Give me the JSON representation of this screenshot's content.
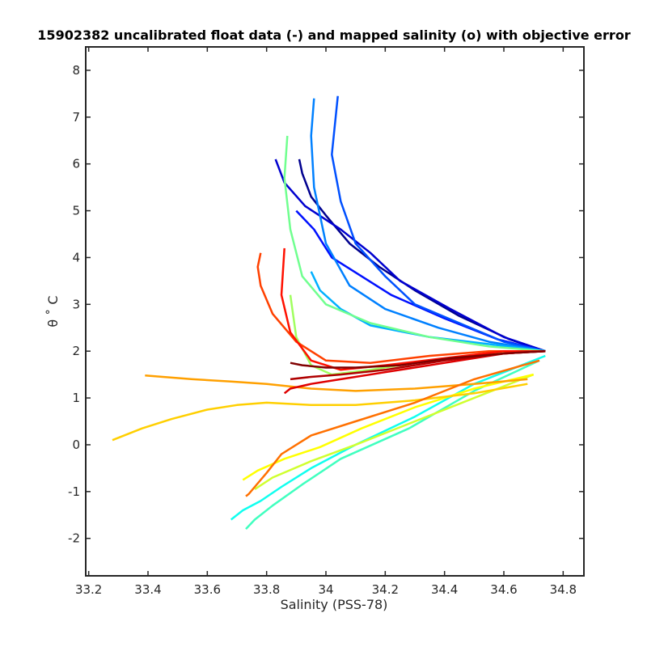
{
  "chart_data": {
    "type": "line",
    "title": "15902382 uncalibrated float data (-) and mapped salinity (o) with objective error",
    "xlabel": "Salinity (PSS-78)",
    "ylabel": "θ ˚ C",
    "xlim": [
      33.19,
      34.87
    ],
    "ylim": [
      -2.8,
      8.5
    ],
    "xticks": [
      "33.2",
      "33.4",
      "33.6",
      "33.8",
      "34",
      "34.2",
      "34.4",
      "34.6",
      "34.8"
    ],
    "yticks": [
      "-2",
      "-1",
      "0",
      "1",
      "2",
      "3",
      "4",
      "5",
      "6",
      "7",
      "8"
    ],
    "grid": false,
    "legend": "none",
    "colormap": "jet (profile number)",
    "series": [
      {
        "color": "#00008f",
        "x": [
          34.74,
          34.62,
          34.45,
          34.3,
          34.18,
          34.08,
          34.0,
          33.95,
          33.92,
          33.91
        ],
        "y": [
          2.0,
          2.25,
          2.75,
          3.3,
          3.8,
          4.3,
          4.9,
          5.3,
          5.8,
          6.1
        ]
      },
      {
        "color": "#0000cf",
        "x": [
          34.74,
          34.6,
          34.42,
          34.25,
          34.15,
          34.05,
          33.93,
          33.86,
          33.83
        ],
        "y": [
          2.0,
          2.3,
          2.9,
          3.5,
          4.1,
          4.6,
          5.1,
          5.6,
          6.1
        ]
      },
      {
        "color": "#0010ff",
        "x": [
          34.74,
          34.58,
          34.4,
          34.22,
          34.12,
          34.02,
          33.96,
          33.9
        ],
        "y": [
          2.0,
          2.25,
          2.7,
          3.2,
          3.6,
          4.0,
          4.6,
          5.0
        ]
      },
      {
        "color": "#0050ff",
        "x": [
          34.74,
          34.6,
          34.45,
          34.3,
          34.2,
          34.1,
          34.05,
          34.02,
          34.04
        ],
        "y": [
          2.0,
          2.2,
          2.6,
          3.0,
          3.6,
          4.3,
          5.2,
          6.2,
          7.45
        ]
      },
      {
        "color": "#0080ff",
        "x": [
          34.74,
          34.55,
          34.38,
          34.2,
          34.08,
          34.0,
          33.96,
          33.95,
          33.96
        ],
        "y": [
          2.0,
          2.2,
          2.5,
          2.9,
          3.4,
          4.3,
          5.5,
          6.6,
          7.4
        ]
      },
      {
        "color": "#00b0ff",
        "x": [
          34.74,
          34.55,
          34.35,
          34.15,
          34.05,
          33.98,
          33.95
        ],
        "y": [
          2.0,
          2.15,
          2.3,
          2.55,
          2.9,
          3.3,
          3.7
        ]
      },
      {
        "color": "#10ffef",
        "x": [
          34.74,
          34.5,
          34.3,
          34.1,
          33.95,
          33.85,
          33.78,
          33.72,
          33.68
        ],
        "y": [
          1.9,
          1.3,
          0.6,
          0.0,
          -0.5,
          -0.9,
          -1.2,
          -1.4,
          -1.6
        ]
      },
      {
        "color": "#40ffbf",
        "x": [
          34.72,
          34.5,
          34.28,
          34.05,
          33.92,
          33.82,
          33.76,
          33.73
        ],
        "y": [
          1.8,
          1.15,
          0.35,
          -0.3,
          -0.85,
          -1.3,
          -1.6,
          -1.8
        ]
      },
      {
        "color": "#70ff8f",
        "x": [
          34.74,
          34.55,
          34.35,
          34.15,
          34.0,
          33.92,
          33.88,
          33.86,
          33.87
        ],
        "y": [
          2.0,
          2.1,
          2.3,
          2.6,
          3.0,
          3.6,
          4.6,
          5.7,
          6.6
        ]
      },
      {
        "color": "#a0ff5f",
        "x": [
          34.74,
          34.55,
          34.35,
          34.15,
          34.02,
          33.95,
          33.9,
          33.88
        ],
        "y": [
          2.0,
          1.95,
          1.8,
          1.6,
          1.5,
          1.7,
          2.3,
          3.2
        ]
      },
      {
        "color": "#d0ff2f",
        "x": [
          34.7,
          34.5,
          34.3,
          34.1,
          33.95,
          33.82,
          33.76
        ],
        "y": [
          1.5,
          1.0,
          0.5,
          0.0,
          -0.35,
          -0.7,
          -0.95
        ]
      },
      {
        "color": "#ffff00",
        "x": [
          34.7,
          34.5,
          34.3,
          34.12,
          33.98,
          33.86,
          33.77,
          33.72
        ],
        "y": [
          1.5,
          1.2,
          0.8,
          0.35,
          -0.05,
          -0.3,
          -0.55,
          -0.75
        ]
      },
      {
        "color": "#ffcf00",
        "x": [
          34.68,
          34.5,
          34.3,
          34.1,
          33.95,
          33.8,
          33.7,
          33.6,
          33.48,
          33.38,
          33.28
        ],
        "y": [
          1.3,
          1.1,
          0.95,
          0.85,
          0.85,
          0.9,
          0.85,
          0.75,
          0.55,
          0.35,
          0.1
        ]
      },
      {
        "color": "#ffa000",
        "x": [
          34.68,
          34.5,
          34.3,
          34.1,
          33.95,
          33.8,
          33.68,
          33.55,
          33.45,
          33.39
        ],
        "y": [
          1.4,
          1.3,
          1.2,
          1.15,
          1.2,
          1.3,
          1.35,
          1.4,
          1.45,
          1.48
        ]
      },
      {
        "color": "#ff7000",
        "x": [
          34.72,
          34.5,
          34.3,
          34.1,
          33.95,
          33.85,
          33.8,
          33.76,
          33.74,
          33.73
        ],
        "y": [
          1.8,
          1.4,
          0.9,
          0.5,
          0.2,
          -0.2,
          -0.6,
          -0.9,
          -1.05,
          -1.1
        ]
      },
      {
        "color": "#ff4000",
        "x": [
          34.74,
          34.55,
          34.35,
          34.15,
          34.0,
          33.9,
          33.82,
          33.78,
          33.77,
          33.78
        ],
        "y": [
          2.0,
          2.0,
          1.9,
          1.75,
          1.8,
          2.2,
          2.8,
          3.4,
          3.8,
          4.1
        ]
      },
      {
        "color": "#ff1000",
        "x": [
          34.74,
          34.6,
          34.4,
          34.2,
          34.05,
          33.95,
          33.88,
          33.85,
          33.86
        ],
        "y": [
          2.0,
          2.0,
          1.85,
          1.7,
          1.6,
          1.8,
          2.4,
          3.2,
          4.2
        ]
      },
      {
        "color": "#df0000",
        "x": [
          34.74,
          34.6,
          34.4,
          34.2,
          34.05,
          33.95,
          33.88,
          33.86
        ],
        "y": [
          2.0,
          1.95,
          1.75,
          1.55,
          1.4,
          1.3,
          1.2,
          1.1
        ]
      },
      {
        "color": "#af0000",
        "x": [
          34.74,
          34.6,
          34.4,
          34.2,
          34.05,
          33.95,
          33.88
        ],
        "y": [
          2.0,
          1.95,
          1.8,
          1.6,
          1.5,
          1.45,
          1.4
        ]
      },
      {
        "color": "#800000",
        "x": [
          34.74,
          34.6,
          34.42,
          34.25,
          34.1,
          34.0,
          33.92,
          33.88
        ],
        "y": [
          2.0,
          1.95,
          1.85,
          1.7,
          1.65,
          1.65,
          1.7,
          1.75
        ]
      }
    ]
  }
}
